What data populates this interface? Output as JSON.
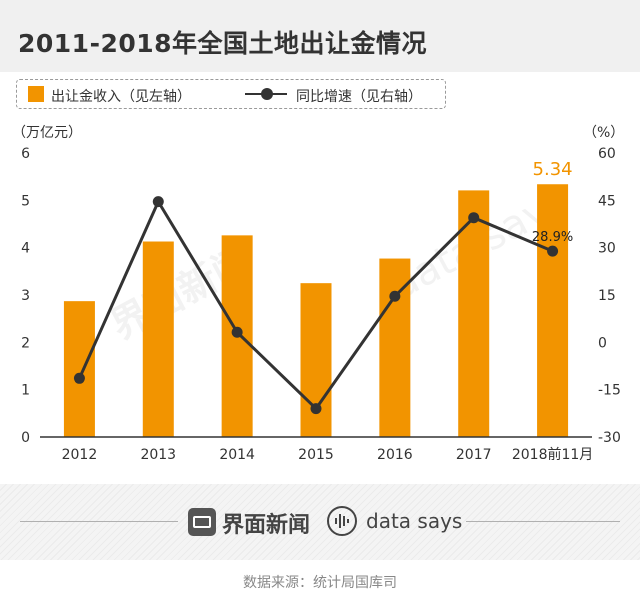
{
  "header": {
    "title": "2011-2018年全国土地出让金情况"
  },
  "legend": {
    "bar_label": "出让金收入（见左轴）",
    "line_label": "同比增速（见右轴）"
  },
  "units": {
    "left": "（万亿元）",
    "right": "（%）"
  },
  "chart_data": {
    "type": "bar+line",
    "categories": [
      "2012",
      "2013",
      "2014",
      "2015",
      "2016",
      "2017",
      "2018前11月"
    ],
    "series": [
      {
        "name": "出让金收入（见左轴）",
        "axis": "left",
        "type": "bar",
        "values": [
          2.87,
          4.13,
          4.26,
          3.25,
          3.77,
          5.21,
          5.34
        ]
      },
      {
        "name": "同比增速（见右轴）",
        "axis": "right",
        "type": "line",
        "values": [
          -11.4,
          44.6,
          3.2,
          -21.0,
          14.6,
          39.5,
          28.9
        ]
      }
    ],
    "left_axis": {
      "min": 0,
      "max": 6,
      "ticks": [
        "0",
        "1",
        "2",
        "3",
        "4",
        "5",
        "6"
      ]
    },
    "right_axis": {
      "min": -30,
      "max": 60,
      "ticks": [
        "-30",
        "-15",
        "0",
        "15",
        "30",
        "45",
        "60"
      ]
    },
    "annotations": {
      "bar_last_label": "5.34",
      "line_last_label": "28.9%"
    },
    "colors": {
      "bar": "#f29400",
      "line": "#333333",
      "bar_label": "#f29400"
    }
  },
  "footer": {
    "brand": "界面新闻",
    "brand_en": "data says",
    "source": "数据来源：统计局国库司"
  }
}
